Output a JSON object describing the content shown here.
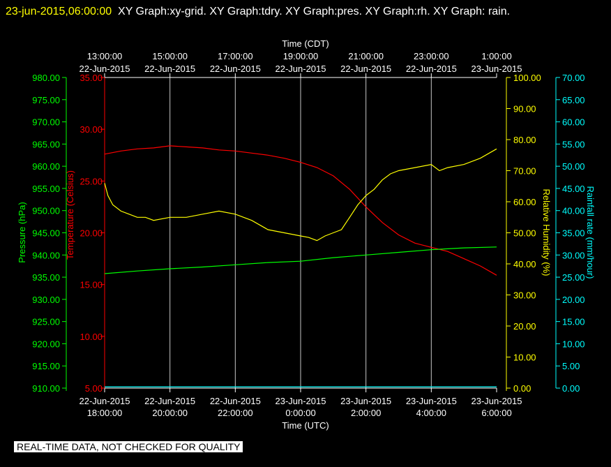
{
  "header": {
    "timestamp": "23-jun-2015,06:00:00",
    "title": "XY Graph:xy-grid.  XY Graph:tdry.  XY Graph:pres.  XY Graph:rh.  XY Graph: rain."
  },
  "footer": {
    "notice": "REAL-TIME DATA, NOT CHECKED FOR QUALITY"
  },
  "colors": {
    "temperature": "#ff0000",
    "pressure": "#00ff00",
    "humidity": "#ffff00",
    "rain": "#00ffff",
    "grid": "#c8c8c8"
  },
  "chart_data": {
    "type": "line",
    "top_axis": {
      "label": "Time (CDT)",
      "ticks": [
        [
          "13:00:00",
          "22-Jun-2015"
        ],
        [
          "15:00:00",
          "22-Jun-2015"
        ],
        [
          "17:00:00",
          "22-Jun-2015"
        ],
        [
          "19:00:00",
          "22-Jun-2015"
        ],
        [
          "21:00:00",
          "22-Jun-2015"
        ],
        [
          "23:00:00",
          "22-Jun-2015"
        ],
        [
          "1:00:00",
          "23-Jun-2015"
        ]
      ]
    },
    "bottom_axis": {
      "label": "Time (UTC)",
      "ticks": [
        [
          "22-Jun-2015",
          "18:00:00"
        ],
        [
          "22-Jun-2015",
          "20:00:00"
        ],
        [
          "22-Jun-2015",
          "22:00:00"
        ],
        [
          "23-Jun-2015",
          "0:00:00"
        ],
        [
          "23-Jun-2015",
          "2:00:00"
        ],
        [
          "23-Jun-2015",
          "4:00:00"
        ],
        [
          "23-Jun-2015",
          "6:00:00"
        ]
      ],
      "x_hours": [
        0,
        2,
        4,
        6,
        8,
        10,
        12
      ]
    },
    "pressure_axis": {
      "label": "Pressure (hPa)",
      "ylim": [
        910,
        980
      ],
      "ticks": [
        "910.00",
        "915.00",
        "920.00",
        "925.00",
        "930.00",
        "935.00",
        "940.00",
        "945.00",
        "950.00",
        "955.00",
        "960.00",
        "965.00",
        "970.00",
        "975.00",
        "980.00"
      ]
    },
    "temperature_axis": {
      "label": "Temperature (Celsius)",
      "ylim": [
        5,
        35
      ],
      "ticks": [
        "5.00",
        "10.00",
        "15.00",
        "20.00",
        "25.00",
        "30.00",
        "35.00"
      ]
    },
    "humidity_axis": {
      "label": "Relative Humidity (%)",
      "ylim": [
        0,
        100
      ],
      "ticks": [
        "0.00",
        "10.00",
        "20.00",
        "30.00",
        "40.00",
        "50.00",
        "60.00",
        "70.00",
        "80.00",
        "90.00",
        "100.00"
      ]
    },
    "rain_axis": {
      "label": "Rainfall rate (mm/hour)",
      "ylim": [
        0,
        70
      ],
      "ticks": [
        "0.00",
        "5.00",
        "10.00",
        "15.00",
        "20.00",
        "25.00",
        "30.00",
        "35.00",
        "40.00",
        "45.00",
        "50.00",
        "55.00",
        "60.00",
        "65.00",
        "70.00"
      ]
    },
    "series": [
      {
        "name": "tdry",
        "axis": "temperature",
        "x": [
          0,
          0.5,
          1,
          1.5,
          2,
          2.5,
          3,
          3.5,
          4,
          4.5,
          5,
          5.5,
          6,
          6.5,
          7,
          7.5,
          8,
          8.5,
          9,
          9.5,
          10,
          10.5,
          11,
          11.5,
          12
        ],
        "y": [
          27.6,
          27.9,
          28.1,
          28.2,
          28.4,
          28.3,
          28.2,
          28.0,
          27.9,
          27.7,
          27.5,
          27.2,
          26.8,
          26.3,
          25.5,
          24.2,
          22.5,
          21.0,
          19.8,
          19.0,
          18.6,
          18.2,
          17.5,
          16.8,
          15.9
        ]
      },
      {
        "name": "pres",
        "axis": "pressure",
        "x": [
          0,
          1,
          2,
          3,
          4,
          5,
          6,
          7,
          8,
          9,
          10,
          11,
          12
        ],
        "y": [
          935.8,
          936.4,
          936.9,
          937.3,
          937.8,
          938.3,
          938.6,
          939.4,
          940.0,
          940.6,
          941.2,
          941.6,
          941.8
        ]
      },
      {
        "name": "rh",
        "axis": "humidity",
        "x": [
          0,
          0.1,
          0.25,
          0.5,
          0.75,
          1,
          1.25,
          1.5,
          2,
          2.5,
          3,
          3.5,
          4,
          4.5,
          5,
          5.5,
          6,
          6.25,
          6.5,
          6.75,
          7,
          7.25,
          7.5,
          7.75,
          8,
          8.25,
          8.5,
          8.75,
          9,
          9.5,
          10,
          10.25,
          10.5,
          11,
          11.5,
          12
        ],
        "y": [
          66,
          62,
          59,
          57,
          56,
          55,
          55,
          54,
          55,
          55,
          56,
          57,
          56,
          54,
          51,
          50,
          49,
          48.5,
          47.5,
          49,
          50,
          51,
          55,
          59,
          62,
          64,
          67,
          69,
          70,
          71,
          72,
          70,
          71,
          72,
          74,
          77
        ]
      },
      {
        "name": "rain",
        "axis": "rain",
        "x": [
          0,
          12
        ],
        "y": [
          0.3,
          0.3
        ]
      }
    ]
  }
}
